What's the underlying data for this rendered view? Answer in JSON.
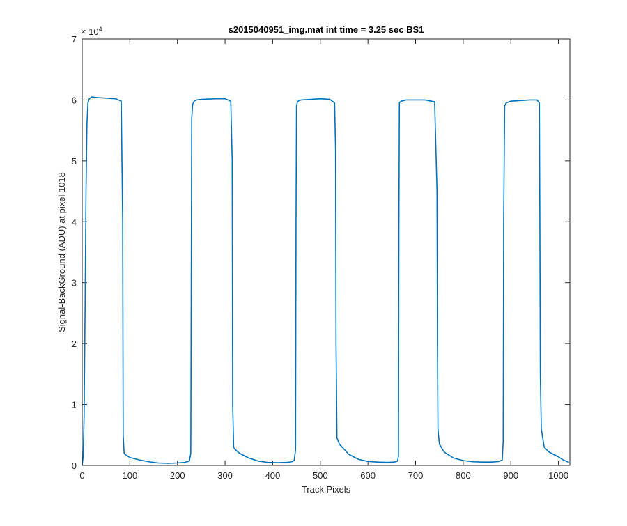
{
  "chart_data": {
    "type": "line",
    "title": "s2015040951_img.mat int time = 3.25 sec   BS1",
    "xlabel": "Track Pixels",
    "ylabel": "Signal-BackGround (ADU) at pixel 1018",
    "y_exponent_label": "× 10",
    "y_exponent_value": "4",
    "xlim": [
      0,
      1024
    ],
    "ylim": [
      0,
      70000
    ],
    "x_ticks": [
      0,
      100,
      200,
      300,
      400,
      500,
      600,
      700,
      800,
      900,
      1000
    ],
    "x_tick_labels": [
      "0",
      "100",
      "200",
      "300",
      "400",
      "500",
      "600",
      "700",
      "800",
      "900",
      "1000"
    ],
    "y_ticks": [
      0,
      10000,
      20000,
      30000,
      40000,
      50000,
      60000,
      70000
    ],
    "y_tick_labels": [
      "0",
      "1",
      "2",
      "3",
      "4",
      "5",
      "6",
      "7"
    ],
    "grid": false,
    "line_color": "#0072BD",
    "series": [
      {
        "x": [
          0,
          2,
          4,
          6,
          8,
          10,
          12,
          15,
          20,
          30,
          50,
          70,
          82,
          85,
          86,
          88,
          90,
          100,
          120,
          140,
          160,
          180,
          200,
          215,
          225,
          228,
          229,
          230,
          232,
          235,
          240,
          250,
          280,
          300,
          312,
          315,
          316,
          318,
          320,
          330,
          350,
          370,
          390,
          410,
          430,
          440,
          445,
          448,
          449,
          450,
          452,
          455,
          460,
          480,
          500,
          520,
          530,
          532,
          533,
          535,
          540,
          560,
          580,
          600,
          620,
          640,
          655,
          662,
          664,
          665,
          666,
          668,
          670,
          680,
          700,
          720,
          740,
          745,
          746,
          747,
          750,
          760,
          780,
          800,
          820,
          840,
          860,
          875,
          882,
          884,
          885,
          887,
          890,
          900,
          920,
          940,
          955,
          960,
          961,
          962,
          964,
          970,
          980,
          1000,
          1010,
          1022
        ],
        "y": [
          0,
          1500,
          8000,
          25000,
          45000,
          56000,
          59500,
          60200,
          60500,
          60400,
          60300,
          60200,
          59800,
          40000,
          5000,
          2000,
          1800,
          1300,
          900,
          600,
          400,
          350,
          400,
          500,
          700,
          2000,
          30000,
          57000,
          59300,
          59800,
          60000,
          60100,
          60200,
          60200,
          59800,
          50000,
          10000,
          3000,
          2700,
          2000,
          1200,
          700,
          500,
          450,
          500,
          600,
          800,
          2500,
          40000,
          59000,
          59700,
          59900,
          60000,
          60100,
          60200,
          60100,
          59500,
          52000,
          20000,
          4500,
          3500,
          1800,
          1000,
          650,
          550,
          500,
          550,
          700,
          1500,
          40000,
          59500,
          59700,
          59800,
          60000,
          60000,
          60000,
          59700,
          45000,
          20000,
          6000,
          3500,
          2200,
          1200,
          800,
          600,
          550,
          550,
          650,
          900,
          4000,
          40000,
          59000,
          59500,
          59800,
          59900,
          60000,
          60000,
          59500,
          40000,
          15000,
          6000,
          3000,
          2200,
          1400,
          900,
          500
        ]
      }
    ]
  }
}
